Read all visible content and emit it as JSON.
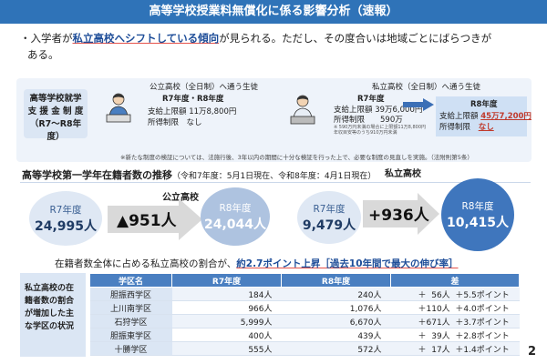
{
  "header": {
    "title": "高等学校授業料無償化に係る影響分析（速報）"
  },
  "summary": {
    "bullet": "・入学者が",
    "highlight": "私立高校へシフトしている傾向",
    "rest1": "が見られる。ただし、その度合いは地域ごとにばらつきが",
    "line2": "ある。"
  },
  "support": {
    "label_lines": [
      "高等学校就学",
      "支 援 金 制 度",
      "（R7〜R8年度）"
    ],
    "public": {
      "title": "公立高校（全日制）へ通う生徒",
      "year": "R7年度・R8年度",
      "limit": "支給上限額 11万8,800円",
      "income": "所得制限　なし"
    },
    "private": {
      "title": "私立高校（全日制）へ通う生徒",
      "r7_year": "R7年度",
      "r7_limit": "支給上限額 39万6,000円",
      "r7_income": "所得制限　　590万",
      "r7_note1": "※ 590万円未満の場合に上限額11万8,800円",
      "r7_note2": "年収目安等のうち910万円未満",
      "r8_year": "R8年度",
      "r8_limit_label": "支給上限額",
      "r8_limit_value": "45万7,200円",
      "r8_income_label": "所得制限",
      "r8_income_value": "なし"
    },
    "note": "※新たな制度の検証については、法施行後、3年以内の期間に十分な検証を行った上で、必要な制度の見直しを実施。（法附則第5条）"
  },
  "students": {
    "heading": "高等学校第一学年在籍者数の推移",
    "heading_sub": "（令和7年度：5月1日現在、令和8年度：4月1日現在）",
    "public": {
      "label": "公立高校",
      "r7_label": "R7年度",
      "r7_value": "24,995人",
      "change": "▲951人",
      "r8_label": "R8年度",
      "r8_value": "24,044人"
    },
    "private": {
      "label": "私立高校",
      "r7_label": "R7年度",
      "r7_value": "9,479人",
      "change": "+936人",
      "r8_label": "R8年度",
      "r8_value": "10,415人"
    }
  },
  "share": {
    "text": "在籍者数全体に占める私立高校の割合が、",
    "highlight": "約2.7ポイント上昇［過去10年間で最大の伸び率］"
  },
  "table": {
    "side_label_lines": [
      "私立高校の在",
      "籍者数の割合",
      "が増加した主",
      "な学区の状況"
    ],
    "headers": [
      "学区名",
      "R7年度",
      "R8年度",
      "差"
    ],
    "rows": [
      {
        "name": "胆振西学区",
        "r7": "184人",
        "r8": "240人",
        "diff": "＋  56人  ＋5.5ポイント"
      },
      {
        "name": "上川南学区",
        "r7": "966人",
        "r8": "1,076人",
        "diff": "＋110人  ＋4.0ポイント"
      },
      {
        "name": "石狩学区",
        "r7": "5,999人",
        "r8": "6,670人",
        "diff": "＋671人  ＋3.7ポイント"
      },
      {
        "name": "胆振東学区",
        "r7": "400人",
        "r8": "439人",
        "diff": "＋  39人  ＋2.8ポイント"
      },
      {
        "name": "十勝学区",
        "r7": "555人",
        "r8": "572人",
        "diff": "＋  17人  ＋1.4ポイント"
      }
    ]
  },
  "page_number": "2",
  "colors": {
    "header": "#2f73b8",
    "accent": "#1f4e99",
    "underline": "#e5534b"
  }
}
